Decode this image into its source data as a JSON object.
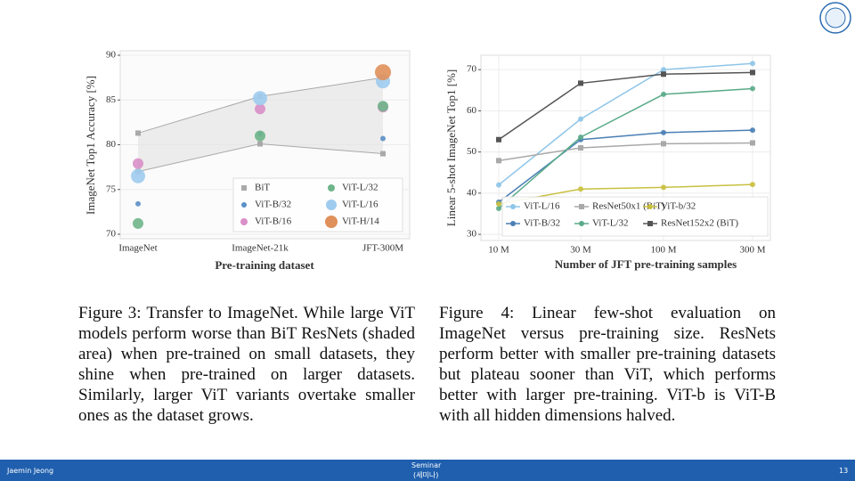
{
  "chart_data": [
    {
      "type": "scatter",
      "y_label": "ImageNet Top1 Accuracy [%]",
      "x_label": "Pre-training dataset",
      "categories": [
        "ImageNet",
        "ImageNet-21k",
        "JFT-300M"
      ],
      "ylim": [
        69.5,
        90.5
      ],
      "yticks": [
        70,
        75,
        80,
        85,
        90
      ],
      "grid": true,
      "series": [
        {
          "name": "BiT",
          "color": "#a9a9a9",
          "marker": "square",
          "values": [
            81.3,
            85.4,
            87.5
          ],
          "low_values": [
            77.0,
            80.1,
            79.0
          ]
        },
        {
          "name": "ViT-B/32",
          "color": "#5b8fc7",
          "values": [
            73.4,
            81.2,
            80.7
          ]
        },
        {
          "name": "ViT-B/16",
          "color": "#d98fc8",
          "values": [
            77.9,
            84.0,
            84.2
          ]
        },
        {
          "name": "ViT-L/32",
          "color": "#6fb58a",
          "values": [
            71.2,
            81.0,
            84.3
          ]
        },
        {
          "name": "ViT-L/16",
          "color": "#9ecbee",
          "values": [
            76.5,
            85.2,
            87.1
          ]
        },
        {
          "name": "ViT-H/14",
          "color": "#e0905a",
          "values": [
            null,
            null,
            88.1
          ]
        }
      ]
    },
    {
      "type": "line",
      "y_label": "Linear 5-shot ImageNet Top1 [%]",
      "x_label": "Number of JFT pre-training samples",
      "categories": [
        "10 M",
        "30 M",
        "100 M",
        "300 M"
      ],
      "ylim": [
        28.5,
        73.5
      ],
      "yticks": [
        30,
        40,
        50,
        60,
        70
      ],
      "grid": true,
      "series": [
        {
          "name": "ViT-L/16",
          "color": "#8ec5e8",
          "values": [
            42.0,
            58.0,
            70.0,
            71.5
          ]
        },
        {
          "name": "ViT-B/32",
          "color": "#4a7fb5",
          "values": [
            37.8,
            53.0,
            54.7,
            55.3
          ]
        },
        {
          "name": "ResNet50x1 (BiT)",
          "color": "#a9a9a9",
          "marker": "square",
          "values": [
            47.9,
            51.0,
            52.0,
            52.2
          ]
        },
        {
          "name": "ViT-L/32",
          "color": "#5bab8a",
          "values": [
            36.3,
            53.6,
            64.0,
            65.4
          ]
        },
        {
          "name": "ViT-b/32",
          "color": "#c9c040",
          "values": [
            37.4,
            41.0,
            41.4,
            42.1
          ]
        },
        {
          "name": "ResNet152x2 (BiT)",
          "color": "#555555",
          "marker": "square",
          "values": [
            53.0,
            66.7,
            68.9,
            69.3
          ]
        }
      ]
    }
  ],
  "captions": [
    "Figure 3: Transfer to ImageNet. While large ViT models perform worse than BiT ResNets (shaded area) when pre-trained on small datasets, they shine when pre-trained on larger datasets. Similarly, larger ViT variants overtake smaller ones as the dataset grows.",
    "Figure 4: Linear few-shot evaluation on ImageNet versus pre-training size. ResNets perform better with smaller pre-training datasets but plateau sooner than ViT, which performs better with larger pre-training. ViT-b is ViT-B with all hidden dimensions halved."
  ],
  "footer": {
    "author": "Jaemin Jeong",
    "event": "Seminar",
    "event_local": "(세미나)",
    "page": "13"
  }
}
